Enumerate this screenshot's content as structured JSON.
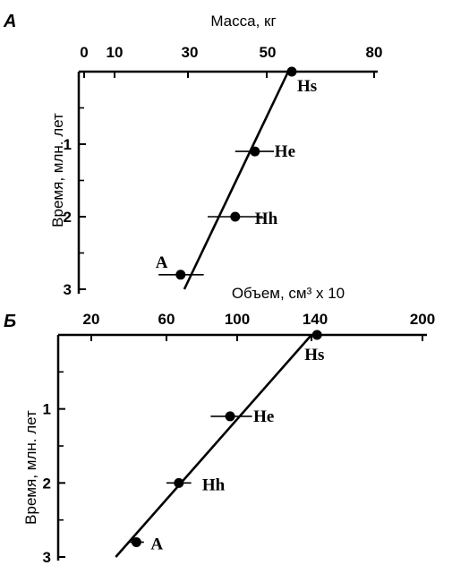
{
  "chart_data": [
    {
      "panel_letter": "А",
      "type": "scatter",
      "xlabel": "Масса, кг",
      "ylabel": "Время, млн. лет",
      "x_ticks": [
        "0",
        "10",
        "30",
        "50",
        "80"
      ],
      "y_ticks": [
        "1",
        "2",
        "3"
      ],
      "ylim": [
        0,
        3
      ],
      "points": [
        {
          "label": "Hs",
          "time": 0.0,
          "x": 57,
          "err": [
            53,
            61
          ]
        },
        {
          "label": "He",
          "time": 1.1,
          "x": 47,
          "err": [
            42,
            52
          ]
        },
        {
          "label": "Hh",
          "time": 2.0,
          "x": 42,
          "err": [
            35,
            49
          ]
        },
        {
          "label": "A",
          "time": 2.8,
          "x": 28,
          "err": [
            22,
            34
          ]
        }
      ],
      "trend": {
        "time": [
          0.0,
          3.0
        ],
        "x": [
          56,
          29
        ]
      }
    },
    {
      "panel_letter": "Б",
      "type": "scatter",
      "xlabel": "Объем, см³ x 10",
      "ylabel": "Время, млн. лет",
      "x_ticks": [
        "20",
        "60",
        "100",
        "140",
        "200"
      ],
      "y_ticks": [
        "1",
        "2",
        "3"
      ],
      "ylim": [
        0,
        3
      ],
      "points": [
        {
          "label": "Hs",
          "time": 0.0,
          "x": 143,
          "err": [
            128,
            158
          ]
        },
        {
          "label": "He",
          "time": 1.1,
          "x": 96,
          "err": [
            85,
            108
          ]
        },
        {
          "label": "Hh",
          "time": 2.0,
          "x": 67,
          "err": [
            60,
            74
          ]
        },
        {
          "label": "A",
          "time": 2.8,
          "x": 44,
          "err": [
            40,
            48
          ]
        }
      ],
      "trend": {
        "time": [
          0.0,
          3.0
        ],
        "x": [
          140,
          33
        ]
      }
    }
  ]
}
